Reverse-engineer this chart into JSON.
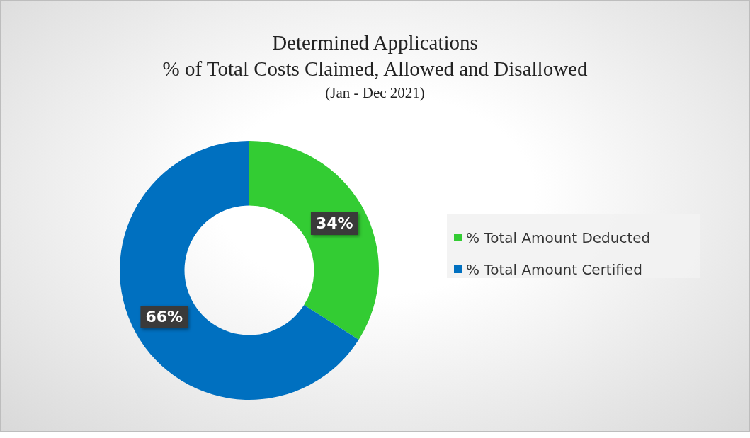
{
  "chart_data": {
    "type": "donut",
    "title": "Determined Applications",
    "subtitle": "% of Total Costs Claimed, Allowed and Disallowed",
    "annotations": [
      "(Jan - Dec 2021)"
    ],
    "categories": [
      "% Total Amount Deducted",
      "% Total Amount Certified"
    ],
    "values": [
      34,
      66
    ],
    "colors": [
      "#33cc33",
      "#0070c0"
    ],
    "value_labels": [
      "34%",
      "66%"
    ],
    "legend": "right"
  }
}
